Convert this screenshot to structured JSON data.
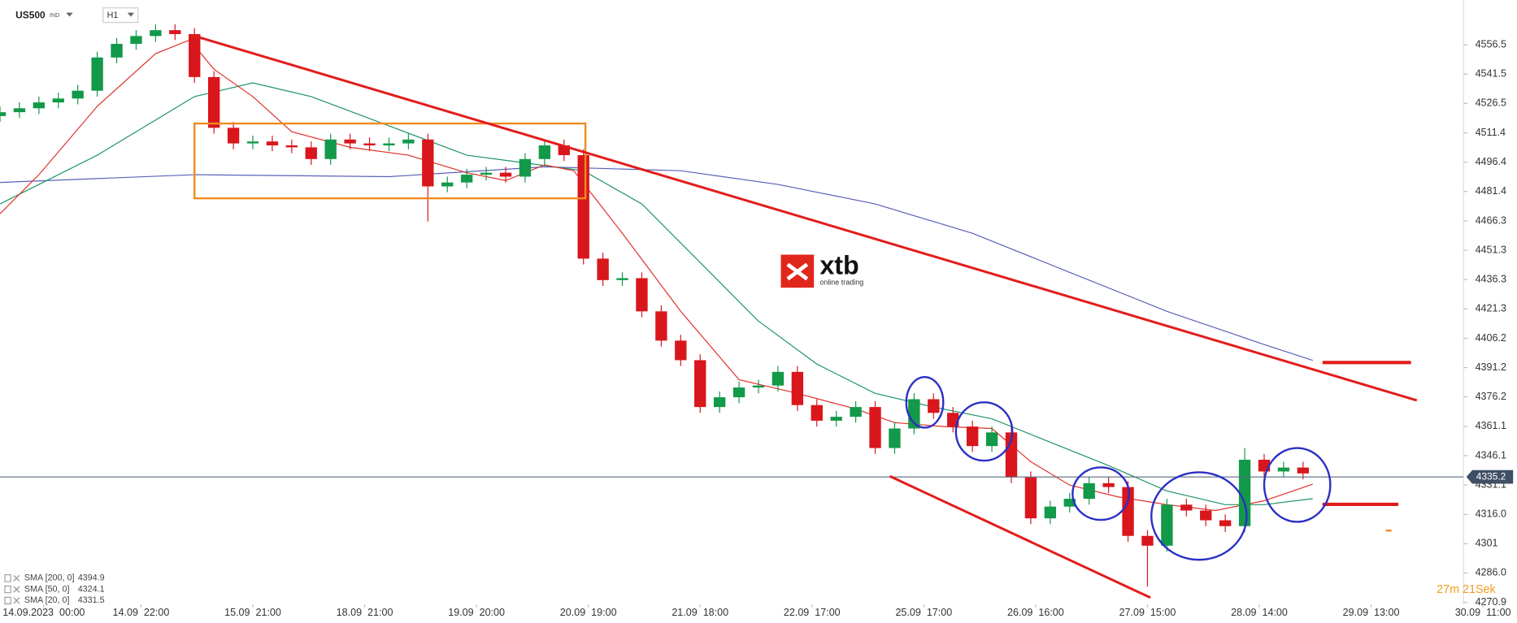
{
  "chart_data": {
    "type": "candlestick",
    "symbol": "US500",
    "market": "IND",
    "timeframe": "H1",
    "x": [
      0,
      4,
      8,
      12,
      16,
      20,
      24,
      28,
      32,
      36,
      40,
      44,
      48,
      52,
      56,
      60,
      64,
      68,
      72,
      76,
      80,
      84,
      88,
      92,
      96,
      100,
      104,
      108,
      112,
      116,
      120,
      124,
      128,
      132,
      136,
      140,
      144,
      148,
      152,
      156,
      160,
      164,
      168,
      172,
      176,
      180,
      184,
      188,
      192,
      196,
      200,
      204,
      208,
      212,
      216,
      220,
      224,
      228,
      232,
      236,
      240,
      244,
      248,
      252,
      256,
      260,
      264,
      268
    ],
    "open": [
      4520,
      4522,
      4524,
      4527,
      4529,
      4533,
      4550,
      4557,
      4561,
      4564,
      4562,
      4540,
      4514,
      4506,
      4507,
      4505,
      4504,
      4498,
      4508,
      4506,
      4505,
      4506,
      4508,
      4484,
      4486,
      4490,
      4491,
      4489,
      4498,
      4505,
      4500,
      4447,
      4436,
      4437,
      4420,
      4405,
      4395,
      4371,
      4376,
      4381,
      4382,
      4389,
      4372,
      4364,
      4366,
      4371,
      4350,
      4360,
      4375,
      4368,
      4361,
      4351,
      4358,
      4335,
      4314,
      4320,
      4324,
      4332,
      4330,
      4305,
      4300,
      4321,
      4318,
      4313,
      4310,
      4344,
      4338,
      4340
    ],
    "high": [
      4525,
      4527,
      4530,
      4532,
      4536,
      4553,
      4560,
      4564,
      4567,
      4567,
      4565,
      4543,
      4517,
      4510,
      4510,
      4508,
      4507,
      4511,
      4511,
      4509,
      4509,
      4511,
      4511,
      4489,
      4493,
      4494,
      4494,
      4501,
      4508,
      4508,
      4503,
      4450,
      4440,
      4440,
      4423,
      4408,
      4398,
      4379,
      4384,
      4385,
      4392,
      4392,
      4375,
      4369,
      4374,
      4374,
      4363,
      4378,
      4378,
      4371,
      4364,
      4361,
      4361,
      4338,
      4323,
      4327,
      4335,
      4335,
      4333,
      4308,
      4324,
      4324,
      4321,
      4316,
      4350,
      4347,
      4343,
      4343
    ],
    "low": [
      4517,
      4519,
      4521,
      4524,
      4526,
      4530,
      4547,
      4554,
      4558,
      4559,
      4537,
      4511,
      4503,
      4503,
      4502,
      4501,
      4495,
      4495,
      4503,
      4502,
      4502,
      4503,
      4466,
      4481,
      4483,
      4487,
      4486,
      4486,
      4495,
      4497,
      4444,
      4433,
      4433,
      4417,
      4402,
      4392,
      4368,
      4368,
      4373,
      4378,
      4379,
      4369,
      4361,
      4361,
      4363,
      4347,
      4347,
      4357,
      4365,
      4358,
      4348,
      4348,
      4332,
      4311,
      4311,
      4317,
      4321,
      4327,
      4302,
      4279,
      4297,
      4315,
      4310,
      4307,
      4307,
      4335,
      4335,
      4334
    ],
    "close": [
      4522,
      4524,
      4527,
      4529,
      4533,
      4550,
      4557,
      4561,
      4564,
      4562,
      4540,
      4514,
      4506,
      4507,
      4505,
      4504,
      4498,
      4508,
      4506,
      4505,
      4506,
      4508,
      4484,
      4486,
      4490,
      4491,
      4489,
      4498,
      4505,
      4500,
      4447,
      4436,
      4437,
      4420,
      4405,
      4395,
      4371,
      4376,
      4381,
      4382,
      4389,
      4372,
      4364,
      4366,
      4371,
      4350,
      4360,
      4375,
      4368,
      4361,
      4351,
      4358,
      4335,
      4314,
      4320,
      4324,
      4332,
      4330,
      4305,
      4300,
      4321,
      4318,
      4313,
      4310,
      4344,
      4338,
      4340,
      4337
    ],
    "up_color": "#12994a",
    "down_color": "#d8161c",
    "lines": [
      {
        "name": "SMA [200, 0]",
        "color": "#5a62b8",
        "last": 4394.9,
        "x": [
          0,
          40,
          80,
          112,
          140,
          160,
          180,
          200,
          220,
          240,
          260,
          270
        ],
        "values": [
          4486,
          4490,
          4489,
          4494,
          4492,
          4485,
          4475,
          4460,
          4440,
          4420,
          4403,
          4394.9
        ]
      },
      {
        "name": "SMA [50, 0]",
        "color": "#1f9468",
        "last": 4324.1,
        "x": [
          0,
          20,
          40,
          52,
          64,
          80,
          96,
          108,
          120,
          132,
          144,
          156,
          168,
          180,
          192,
          204,
          216,
          228,
          240,
          252,
          260,
          270
        ],
        "values": [
          4475,
          4500,
          4530,
          4537,
          4530,
          4515,
          4500,
          4496,
          4492,
          4475,
          4445,
          4415,
          4393,
          4378,
          4371,
          4365,
          4353,
          4341,
          4328,
          4321,
          4321,
          4324.1
        ]
      },
      {
        "name": "SMA [20, 0]",
        "color": "#e0302a",
        "last": 4331.5,
        "x": [
          0,
          8,
          20,
          32,
          39,
          44,
          52,
          60,
          72,
          84,
          96,
          104,
          112,
          118,
          128,
          140,
          152,
          164,
          176,
          184,
          194,
          204,
          212,
          220,
          230,
          240,
          250,
          260,
          270
        ],
        "values": [
          4470,
          4490,
          4525,
          4552,
          4559,
          4544,
          4530,
          4512,
          4504,
          4500,
          4491,
          4487,
          4495,
          4492,
          4460,
          4420,
          4385,
          4378,
          4370,
          4363,
          4361,
          4360,
          4343,
          4331,
          4325,
          4321,
          4318,
          4323,
          4331.5
        ]
      }
    ],
    "current_price": 4335.2,
    "xlim": [
      0,
      312
    ],
    "ylim": [
      4269.9,
      4579.4
    ],
    "xticks": [
      {
        "value": 9,
        "label": "14.09.2023  00:00"
      },
      {
        "value": 29,
        "label": "14.09  22:00"
      },
      {
        "value": 52,
        "label": "15.09  21:00"
      },
      {
        "value": 75,
        "label": "18.09  21:00"
      },
      {
        "value": 98,
        "label": "19.09  20:00"
      },
      {
        "value": 121,
        "label": "20.09  19:00"
      },
      {
        "value": 144,
        "label": "21.09  18:00"
      },
      {
        "value": 167,
        "label": "22.09  17:00"
      },
      {
        "value": 190,
        "label": "25.09  17:00"
      },
      {
        "value": 213,
        "label": "26.09  16:00"
      },
      {
        "value": 236,
        "label": "27.09  15:00"
      },
      {
        "value": 259,
        "label": "28.09  14:00"
      },
      {
        "value": 282,
        "label": "29.09  13:00"
      },
      {
        "value": 305,
        "label": "30.09  11:00"
      }
    ],
    "yticks": [
      4556.5,
      4541.5,
      4526.5,
      4511.4,
      4496.4,
      4481.4,
      4466.3,
      4451.3,
      4436.3,
      4421.3,
      4406.2,
      4391.2,
      4376.2,
      4361.1,
      4346.1,
      4331.1,
      {
        "value": 4316,
        "label": "4316.0"
      },
      4301,
      {
        "value": 4286,
        "label": "4286.0"
      },
      4270.9
    ],
    "timer": "27m 21Sek"
  },
  "logo": {
    "name": "xtb",
    "tagline": "online trading"
  }
}
